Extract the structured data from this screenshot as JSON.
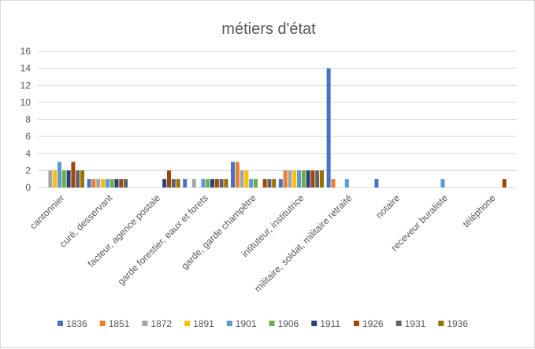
{
  "chart_data": {
    "type": "bar",
    "title": "métiers d'état",
    "xlabel": "",
    "ylabel": "",
    "ylim": [
      0,
      16
    ],
    "yticks": [
      "0",
      "2",
      "4",
      "6",
      "8",
      "10",
      "12",
      "14",
      "16"
    ],
    "grid": true,
    "legend_position": "bottom",
    "categories": [
      "cantonnier",
      "curé, desservant",
      "facteur, agence postale",
      "garde forestier, eaux et forets",
      "garde, garde champêtre",
      "intituteur, institutrice",
      "militaire, soldat, militaire retraité",
      "notaire",
      "receveur buraliste",
      "téléphone"
    ],
    "series": [
      {
        "name": "1836",
        "color": "#4472c4",
        "values": [
          0,
          1,
          0,
          1,
          3,
          1,
          14,
          1,
          0,
          0
        ]
      },
      {
        "name": "1851",
        "color": "#ed7d31",
        "values": [
          0,
          1,
          0,
          0,
          3,
          2,
          1,
          0,
          0,
          0
        ]
      },
      {
        "name": "1872",
        "color": "#a5a5a5",
        "values": [
          2,
          1,
          0,
          1,
          2,
          2,
          0,
          0,
          0,
          0
        ]
      },
      {
        "name": "1891",
        "color": "#ffc000",
        "values": [
          2,
          1,
          0,
          0,
          2,
          2,
          0,
          0,
          0,
          0
        ]
      },
      {
        "name": "1901",
        "color": "#5b9bd5",
        "values": [
          3,
          1,
          0,
          1,
          1,
          2,
          1,
          0,
          1,
          0
        ]
      },
      {
        "name": "1906",
        "color": "#70ad47",
        "values": [
          2,
          1,
          0,
          1,
          1,
          2,
          0,
          0,
          0,
          0
        ]
      },
      {
        "name": "1911",
        "color": "#264478",
        "values": [
          2,
          1,
          1,
          1,
          0,
          2,
          0,
          0,
          0,
          0
        ]
      },
      {
        "name": "1926",
        "color": "#9e480e",
        "values": [
          3,
          1,
          2,
          1,
          1,
          2,
          0,
          0,
          0,
          1
        ]
      },
      {
        "name": "1931",
        "color": "#636363",
        "values": [
          2,
          1,
          1,
          1,
          1,
          2,
          0,
          0,
          0,
          0
        ]
      },
      {
        "name": "1936",
        "color": "#997300",
        "values": [
          2,
          0,
          1,
          1,
          1,
          2,
          0,
          0,
          0,
          0
        ]
      }
    ]
  }
}
